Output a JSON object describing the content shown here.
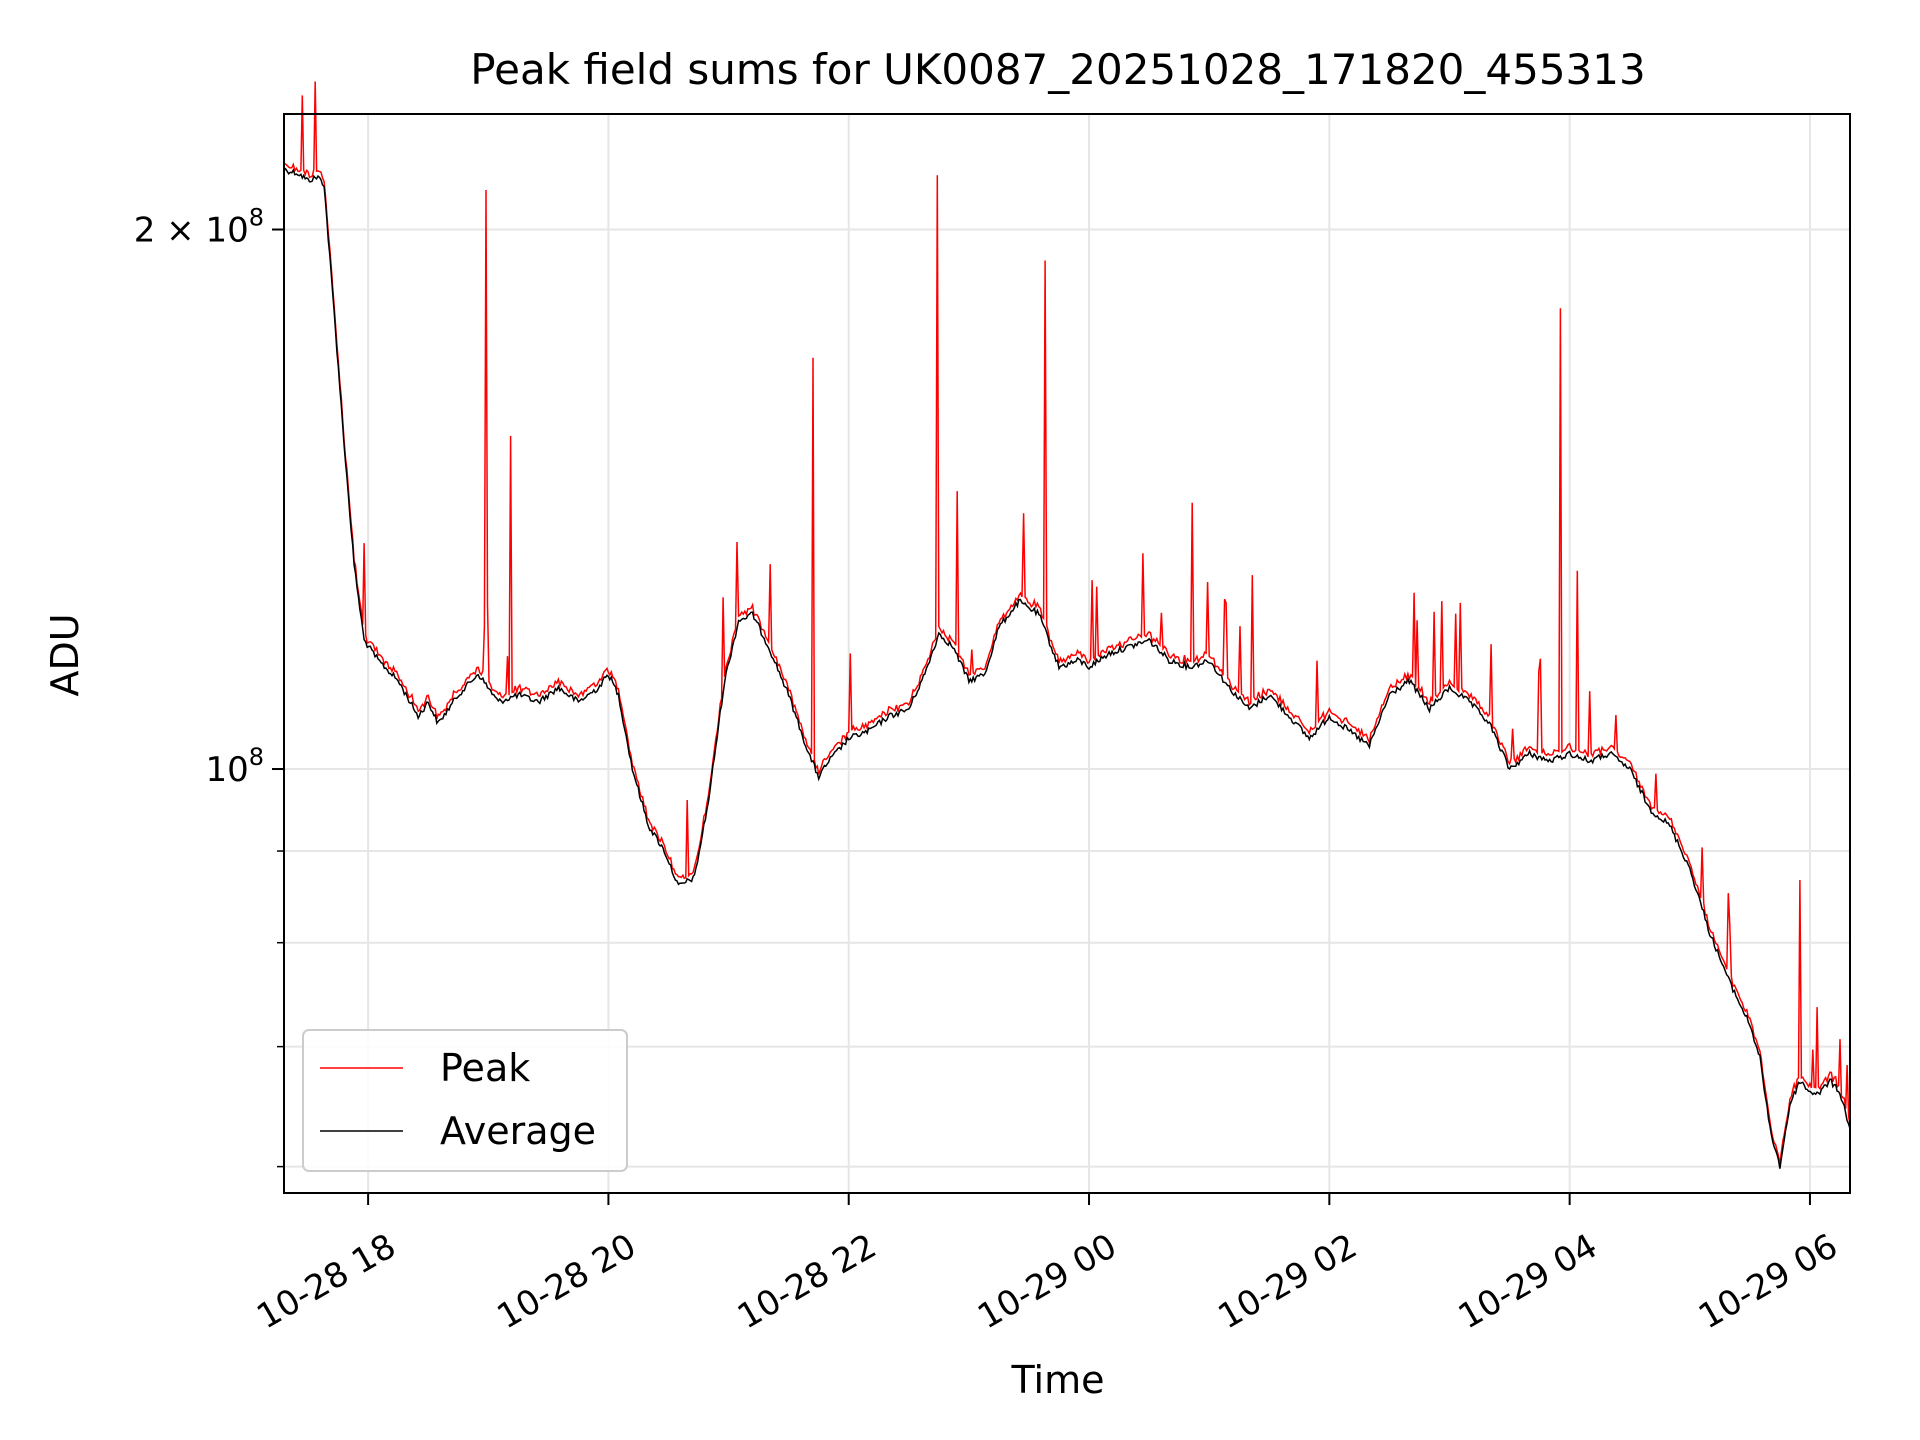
{
  "chart_data": {
    "type": "line",
    "title": "Peak field sums for UK0087_20251028_171820_455313",
    "xlabel": "Time",
    "ylabel": "ADU",
    "yscale": "log",
    "xlim": [
      "2025-10-28 17:18",
      "2025-10-29 06:20"
    ],
    "ylim": [
      58000000,
      232000000
    ],
    "grid": true,
    "legend": "lower-left",
    "x_ticks": [
      {
        "t": "2025-10-28 18:00",
        "label": "10-28 18"
      },
      {
        "t": "2025-10-28 20:00",
        "label": "10-28 20"
      },
      {
        "t": "2025-10-28 22:00",
        "label": "10-28 22"
      },
      {
        "t": "2025-10-29 00:00",
        "label": "10-29 00"
      },
      {
        "t": "2025-10-29 02:00",
        "label": "10-29 02"
      },
      {
        "t": "2025-10-29 04:00",
        "label": "10-29 04"
      },
      {
        "t": "2025-10-29 06:00",
        "label": "10-29 06"
      }
    ],
    "y_ticks": [
      {
        "v": 100000000,
        "base": "10",
        "exp": "8"
      },
      {
        "v": 200000000,
        "base": "2 × 10",
        "exp": "8"
      }
    ],
    "y_minor_ticks": [
      60000000,
      70000000,
      80000000,
      90000000
    ],
    "series": [
      {
        "name": "Average",
        "color": "#000000",
        "points": [
          [
            "2025-10-28 17:18",
            216000000.0
          ],
          [
            "2025-10-28 17:25",
            215000000.0
          ],
          [
            "2025-10-28 17:30",
            213000000.0
          ],
          [
            "2025-10-28 17:35",
            214000000.0
          ],
          [
            "2025-10-28 17:38",
            212000000.0
          ],
          [
            "2025-10-28 17:43",
            180000000.0
          ],
          [
            "2025-10-28 17:48",
            152000000.0
          ],
          [
            "2025-10-28 17:53",
            130000000.0
          ],
          [
            "2025-10-28 17:58",
            118000000.0
          ],
          [
            "2025-10-28 18:05",
            115000000.0
          ],
          [
            "2025-10-28 18:15",
            112000000.0
          ],
          [
            "2025-10-28 18:25",
            107000000.0
          ],
          [
            "2025-10-28 18:30",
            109000000.0
          ],
          [
            "2025-10-28 18:35",
            106000000.0
          ],
          [
            "2025-10-28 18:45",
            110000000.0
          ],
          [
            "2025-10-28 18:55",
            113000000.0
          ],
          [
            "2025-10-28 19:05",
            109000000.0
          ],
          [
            "2025-10-28 19:15",
            110000000.0
          ],
          [
            "2025-10-28 19:25",
            109000000.0
          ],
          [
            "2025-10-28 19:35",
            111000000.0
          ],
          [
            "2025-10-28 19:45",
            109000000.0
          ],
          [
            "2025-10-28 19:55",
            111000000.0
          ],
          [
            "2025-10-28 20:00",
            113000000.0
          ],
          [
            "2025-10-28 20:05",
            110000000.0
          ],
          [
            "2025-10-28 20:12",
            100000000.0
          ],
          [
            "2025-10-28 20:20",
            93000000.0
          ],
          [
            "2025-10-28 20:28",
            90000000.0
          ],
          [
            "2025-10-28 20:35",
            86000000.0
          ],
          [
            "2025-10-28 20:43",
            87000000.0
          ],
          [
            "2025-10-28 20:50",
            96000000.0
          ],
          [
            "2025-10-28 20:58",
            112000000.0
          ],
          [
            "2025-10-28 21:05",
            121000000.0
          ],
          [
            "2025-10-28 21:12",
            122000000.0
          ],
          [
            "2025-10-28 21:20",
            117000000.0
          ],
          [
            "2025-10-28 21:30",
            110000000.0
          ],
          [
            "2025-10-28 21:40",
            102000000.0
          ],
          [
            "2025-10-28 21:45",
            99000000.0
          ],
          [
            "2025-10-28 21:50",
            101000000.0
          ],
          [
            "2025-10-28 22:00",
            104000000.0
          ],
          [
            "2025-10-28 22:10",
            105000000.0
          ],
          [
            "2025-10-28 22:20",
            107000000.0
          ],
          [
            "2025-10-28 22:30",
            108000000.0
          ],
          [
            "2025-10-28 22:38",
            113000000.0
          ],
          [
            "2025-10-28 22:45",
            119000000.0
          ],
          [
            "2025-10-28 22:52",
            117000000.0
          ],
          [
            "2025-10-28 23:00",
            112000000.0
          ],
          [
            "2025-10-28 23:08",
            113000000.0
          ],
          [
            "2025-10-28 23:15",
            120000000.0
          ],
          [
            "2025-10-28 23:25",
            124000000.0
          ],
          [
            "2025-10-28 23:35",
            122000000.0
          ],
          [
            "2025-10-28 23:45",
            114000000.0
          ],
          [
            "2025-10-28 23:55",
            115000000.0
          ],
          [
            "2025-10-29 00:00",
            114000000.0
          ],
          [
            "2025-10-29 00:10",
            116000000.0
          ],
          [
            "2025-10-29 00:20",
            117000000.0
          ],
          [
            "2025-10-29 00:30",
            118000000.0
          ],
          [
            "2025-10-29 00:40",
            115000000.0
          ],
          [
            "2025-10-29 00:50",
            114000000.0
          ],
          [
            "2025-10-29 01:00",
            115000000.0
          ],
          [
            "2025-10-29 01:10",
            111000000.0
          ],
          [
            "2025-10-29 01:20",
            108000000.0
          ],
          [
            "2025-10-29 01:30",
            110000000.0
          ],
          [
            "2025-10-29 01:40",
            107000000.0
          ],
          [
            "2025-10-29 01:50",
            104000000.0
          ],
          [
            "2025-10-29 02:00",
            107000000.0
          ],
          [
            "2025-10-29 02:10",
            105000000.0
          ],
          [
            "2025-10-29 02:20",
            103000000.0
          ],
          [
            "2025-10-29 02:30",
            110000000.0
          ],
          [
            "2025-10-29 02:40",
            112000000.0
          ],
          [
            "2025-10-29 02:50",
            108000000.0
          ],
          [
            "2025-10-29 03:00",
            111000000.0
          ],
          [
            "2025-10-29 03:10",
            109000000.0
          ],
          [
            "2025-10-29 03:20",
            106000000.0
          ],
          [
            "2025-10-29 03:30",
            100000000.0
          ],
          [
            "2025-10-29 03:40",
            102000000.0
          ],
          [
            "2025-10-29 03:50",
            101000000.0
          ],
          [
            "2025-10-29 04:00",
            102000000.0
          ],
          [
            "2025-10-29 04:10",
            101000000.0
          ],
          [
            "2025-10-29 04:20",
            102000000.0
          ],
          [
            "2025-10-29 04:30",
            100000000.0
          ],
          [
            "2025-10-29 04:40",
            95000000.0
          ],
          [
            "2025-10-29 04:50",
            93000000.0
          ],
          [
            "2025-10-29 05:00",
            88000000.0
          ],
          [
            "2025-10-29 05:10",
            81000000.0
          ],
          [
            "2025-10-29 05:20",
            76000000.0
          ],
          [
            "2025-10-29 05:30",
            72000000.0
          ],
          [
            "2025-10-29 05:35",
            69000000.0
          ],
          [
            "2025-10-29 05:40",
            63000000.0
          ],
          [
            "2025-10-29 05:45",
            60000000.0
          ],
          [
            "2025-10-29 05:50",
            65000000.0
          ],
          [
            "2025-10-29 05:55",
            67000000.0
          ],
          [
            "2025-10-29 06:00",
            66000000.0
          ],
          [
            "2025-10-29 06:05",
            66000000.0
          ],
          [
            "2025-10-29 06:10",
            67000000.0
          ],
          [
            "2025-10-29 06:15",
            66000000.0
          ],
          [
            "2025-10-29 06:20",
            63000000.0
          ]
        ]
      },
      {
        "name": "Peak",
        "color": "#ff0000"
      }
    ]
  }
}
